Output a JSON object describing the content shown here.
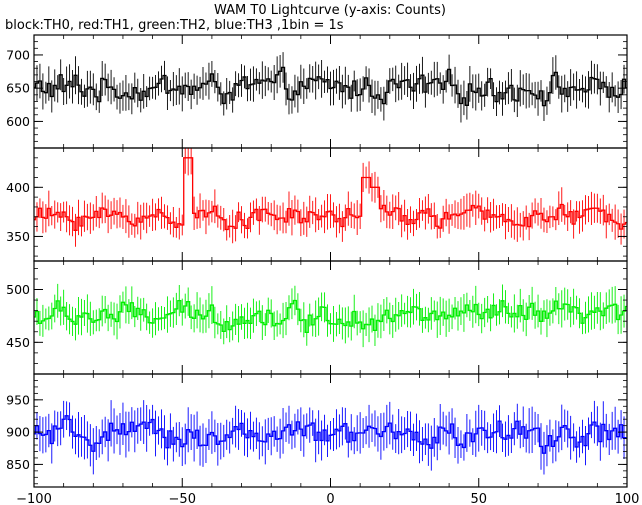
{
  "title": "WAM T0 Lightcurve (y-axis: Counts)",
  "subtitle": "block:TH0, red:TH1, green:TH2, blue:TH3 ,1bin = 1s",
  "chart_data": {
    "type": "line",
    "x_range": [
      -100,
      100
    ],
    "x_ticks": [
      -100,
      -50,
      0,
      50,
      100
    ],
    "x_tick_labels": [
      "−100",
      "−50",
      "0",
      "50",
      "100"
    ],
    "panels": [
      {
        "name": "TH0",
        "color": "#000000",
        "ylim": [
          560,
          730
        ],
        "y_ticks": [
          600,
          650,
          700
        ],
        "y_tick_labels": [
          "600",
          "650",
          "700"
        ],
        "baseline": 650,
        "noise": 28,
        "error": 22,
        "events": []
      },
      {
        "name": "TH1",
        "color": "#ff0000",
        "ylim": [
          325,
          440
        ],
        "y_ticks": [
          350,
          400
        ],
        "y_tick_labels": [
          "350",
          "400"
        ],
        "baseline": 370,
        "noise": 14,
        "error": 14,
        "events": [
          {
            "x": 12,
            "y": 410
          },
          {
            "x": 15,
            "y": 400
          },
          {
            "x": -48,
            "y": 430
          }
        ]
      },
      {
        "name": "TH2",
        "color": "#00ee00",
        "ylim": [
          420,
          527
        ],
        "y_ticks": [
          450,
          500
        ],
        "y_tick_labels": [
          "450",
          "500"
        ],
        "baseline": 475,
        "noise": 16,
        "error": 14,
        "events": []
      },
      {
        "name": "TH3",
        "color": "#0000ff",
        "ylim": [
          815,
          990
        ],
        "y_ticks": [
          850,
          900,
          950
        ],
        "y_tick_labels": [
          "850",
          "900",
          "950"
        ],
        "baseline": 895,
        "noise": 28,
        "error": 28,
        "events": []
      }
    ]
  }
}
